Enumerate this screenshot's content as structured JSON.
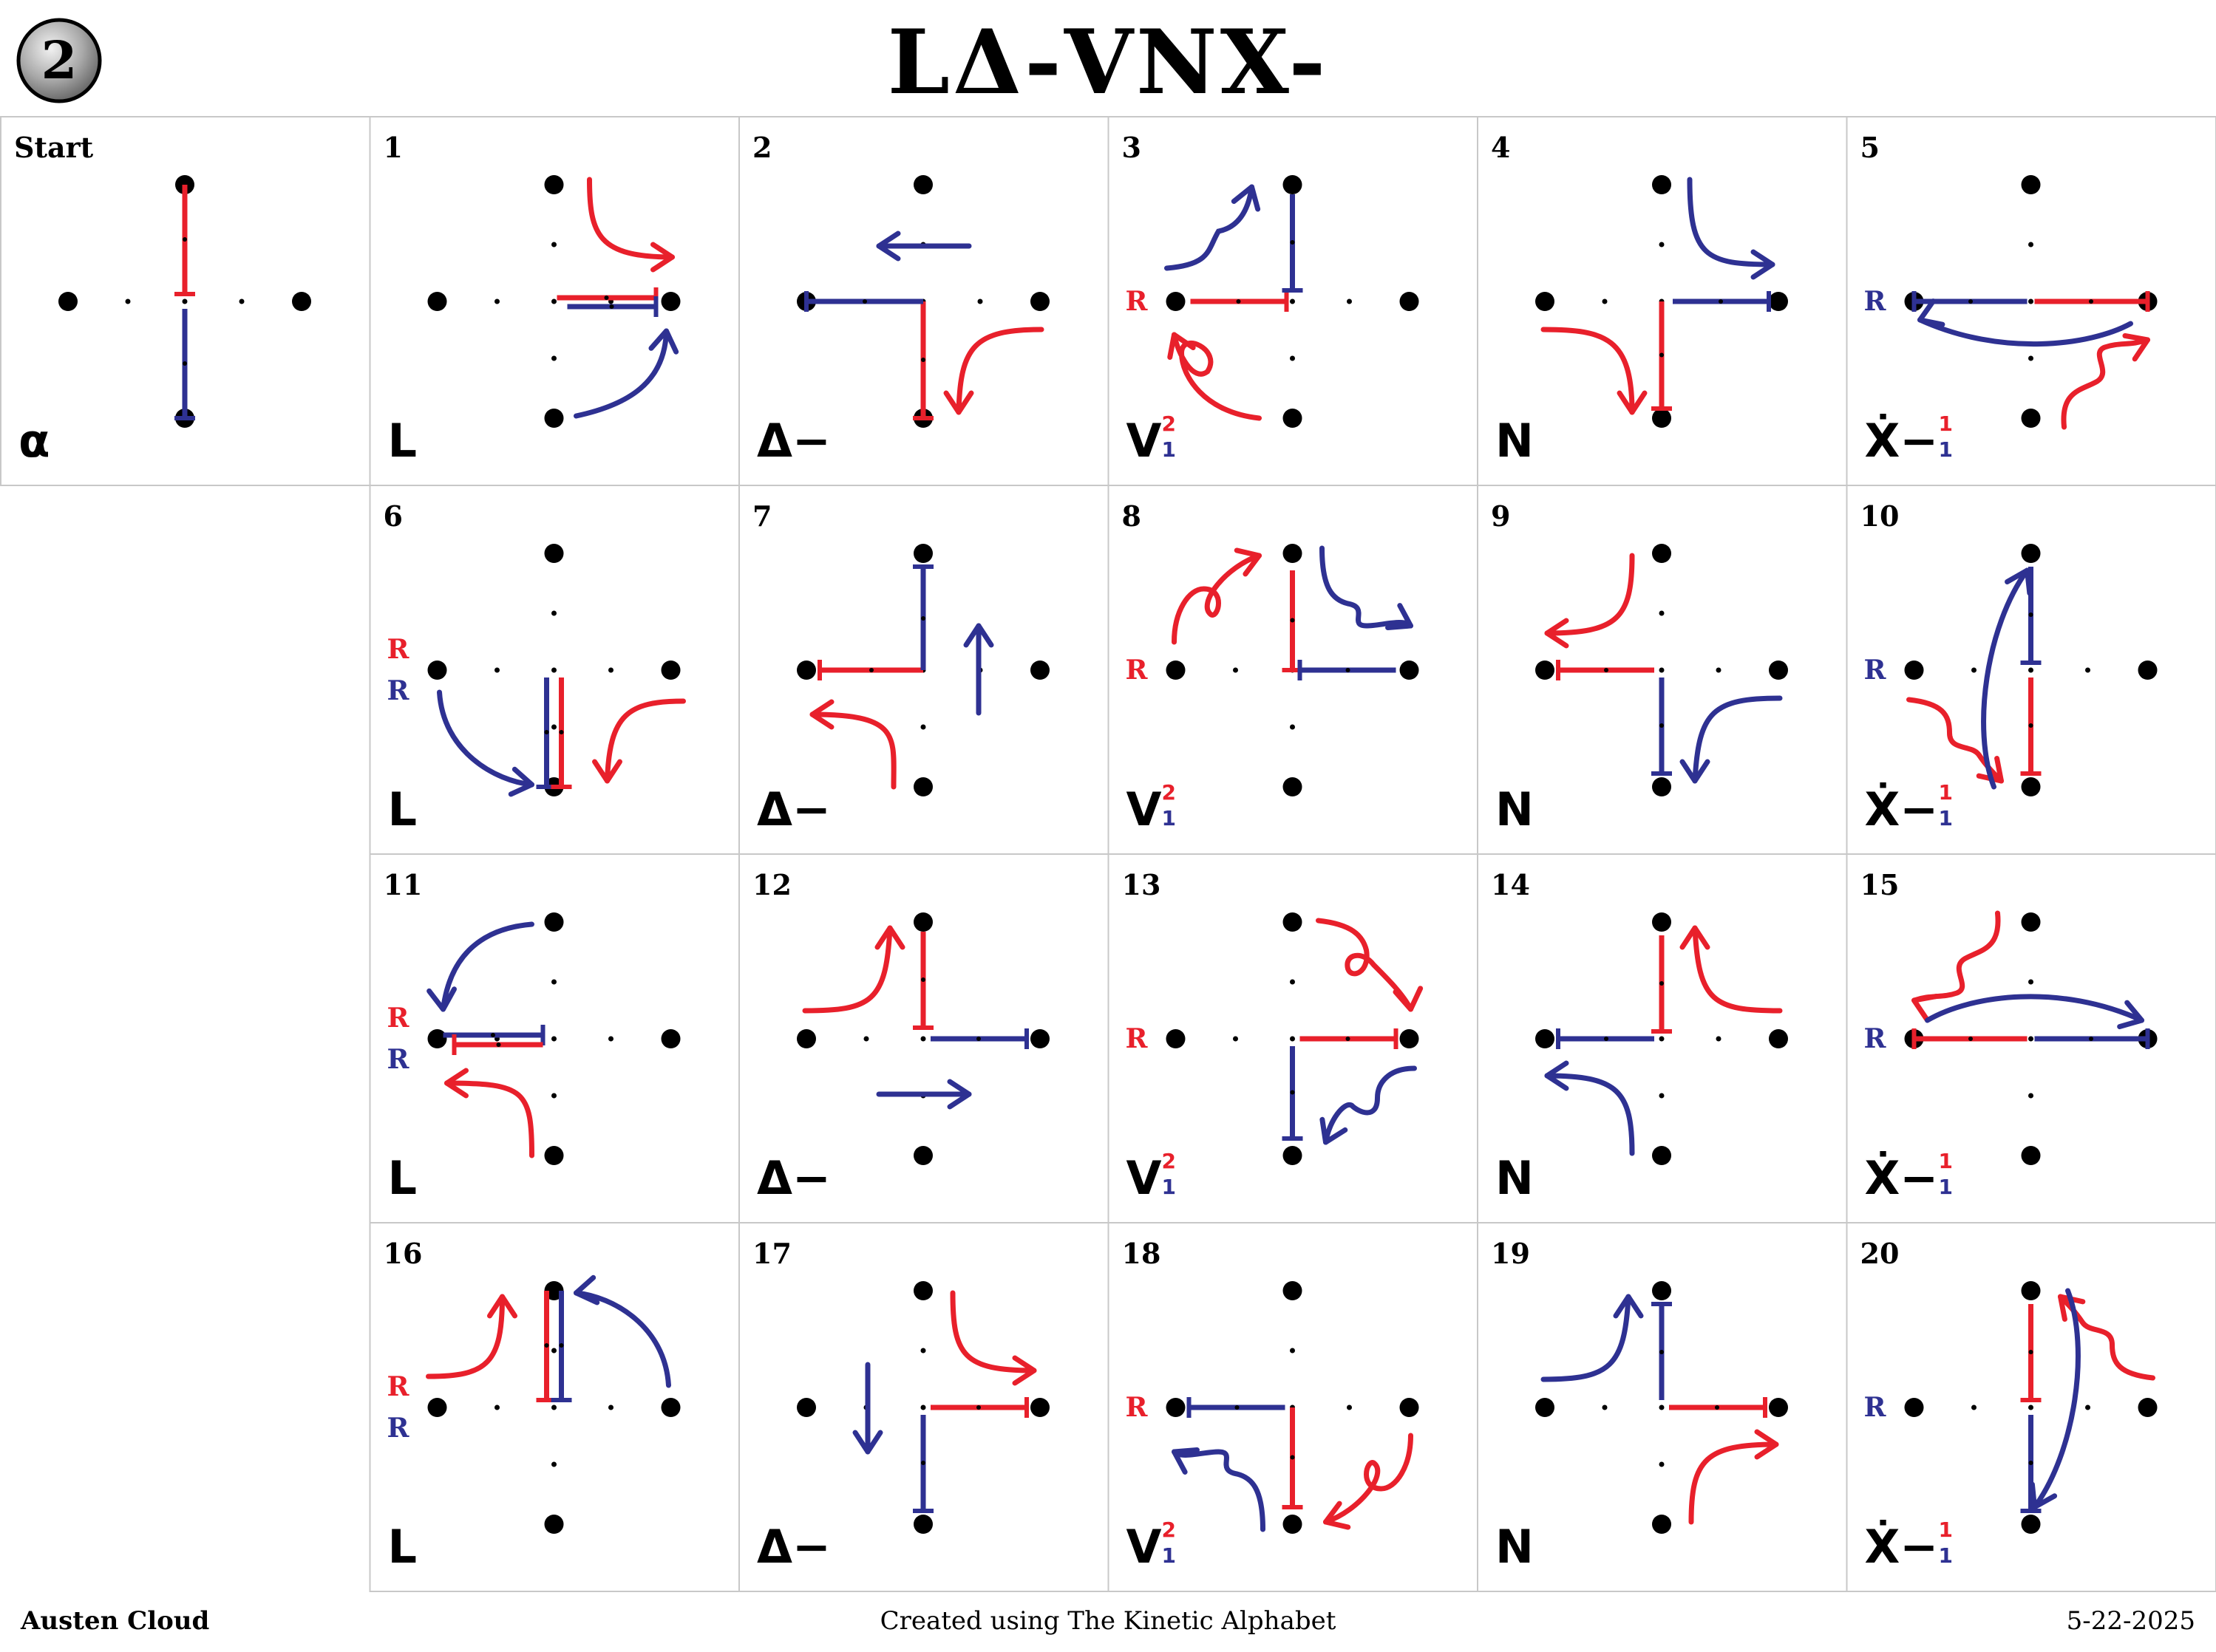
{
  "badge": "2",
  "title": "LΔ-VNX-",
  "footer": {
    "author": "Austen Cloud",
    "credit": "Created using The Kinetic Alphabet",
    "date": "5-22-2025"
  },
  "colors": {
    "red": "#e8202b",
    "blue": "#2e3192",
    "black": "#000000",
    "grid": "#c8c8c8"
  },
  "grid": {
    "rows": 4,
    "cols": 6,
    "cells": [
      {
        "label": "Start",
        "letter": "α",
        "turns": "",
        "tags": []
      },
      {
        "label": "1",
        "letter": "L",
        "turns": "",
        "tags": []
      },
      {
        "label": "2",
        "letter": "Δ−",
        "turns": "",
        "tags": []
      },
      {
        "label": "3",
        "letter": "V",
        "turns": "21",
        "tags": [
          "R-red"
        ]
      },
      {
        "label": "4",
        "letter": "N",
        "turns": "",
        "tags": []
      },
      {
        "label": "5",
        "letter": "Ẋ−",
        "turns": "11",
        "tags": [
          "R-blue"
        ]
      },
      {
        "label": "6",
        "letter": "L",
        "turns": "",
        "tags": [
          "R-red",
          "R-blue"
        ]
      },
      {
        "label": "7",
        "letter": "Δ−",
        "turns": "",
        "tags": []
      },
      {
        "label": "8",
        "letter": "V",
        "turns": "21",
        "tags": [
          "R-red"
        ]
      },
      {
        "label": "9",
        "letter": "N",
        "turns": "",
        "tags": []
      },
      {
        "label": "10",
        "letter": "Ẋ−",
        "turns": "11",
        "tags": [
          "R-blue"
        ]
      },
      {
        "label": "11",
        "letter": "L",
        "turns": "",
        "tags": [
          "R-red",
          "R-blue"
        ]
      },
      {
        "label": "12",
        "letter": "Δ−",
        "turns": "",
        "tags": []
      },
      {
        "label": "13",
        "letter": "V",
        "turns": "21",
        "tags": [
          "R-red"
        ]
      },
      {
        "label": "14",
        "letter": "N",
        "turns": "",
        "tags": []
      },
      {
        "label": "15",
        "letter": "Ẋ−",
        "turns": "11",
        "tags": [
          "R-blue"
        ]
      },
      {
        "label": "16",
        "letter": "L",
        "turns": "",
        "tags": [
          "R-red",
          "R-blue"
        ]
      },
      {
        "label": "17",
        "letter": "Δ−",
        "turns": "",
        "tags": []
      },
      {
        "label": "18",
        "letter": "V",
        "turns": "21",
        "tags": [
          "R-red"
        ]
      },
      {
        "label": "19",
        "letter": "N",
        "turns": "",
        "tags": []
      },
      {
        "label": "20",
        "letter": "Ẋ−",
        "turns": "11",
        "tags": [
          "R-blue"
        ]
      }
    ]
  },
  "tag_text": "R"
}
